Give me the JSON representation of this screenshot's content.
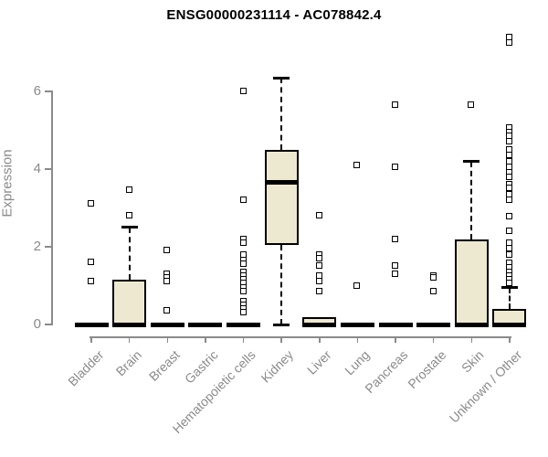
{
  "title": "ENSG00000231114 - AC078842.4",
  "colors": {
    "box_fill": "#ede8d0",
    "box_line": "#000000",
    "axis": "#8a8a8a",
    "title_text": "#000000",
    "background": "#ffffff"
  },
  "chart_data": {
    "type": "boxplot",
    "title": "ENSG00000231114 - AC078842.4",
    "xlabel": "",
    "ylabel": "Expression",
    "ylim": [
      0,
      6.6
    ],
    "yticks": [
      0,
      2,
      4,
      6
    ],
    "grid": false,
    "legend": null,
    "categories": [
      "Bladder",
      "Brain",
      "Breast",
      "Gastric",
      "Hematopoietic cells",
      "Kidney",
      "Liver",
      "Lung",
      "Pancreas",
      "Prostate",
      "Skin",
      "Unknown / Other"
    ],
    "boxes": [
      {
        "category": "Bladder",
        "whisker_low": 0,
        "q1": 0,
        "median": 0,
        "q3": 0,
        "whisker_high": 0,
        "outliers": [
          3.1,
          1.6,
          1.1
        ]
      },
      {
        "category": "Brain",
        "whisker_low": 0,
        "q1": 0,
        "median": 0,
        "q3": 1.15,
        "whisker_high": 2.5,
        "outliers": [
          3.45,
          2.8
        ]
      },
      {
        "category": "Breast",
        "whisker_low": 0,
        "q1": 0,
        "median": 0,
        "q3": 0,
        "whisker_high": 0,
        "outliers": [
          1.9,
          1.3,
          1.2,
          1.1,
          0.35
        ]
      },
      {
        "category": "Gastric",
        "whisker_low": 0,
        "q1": 0,
        "median": 0,
        "q3": 0,
        "whisker_high": 0,
        "outliers": []
      },
      {
        "category": "Hematopoietic cells",
        "whisker_low": 0,
        "q1": 0,
        "median": 0,
        "q3": 0,
        "whisker_high": 0,
        "outliers": [
          6.0,
          3.2,
          2.2,
          2.1,
          1.8,
          1.65,
          1.55,
          1.35,
          1.25,
          1.15,
          1.05,
          0.95,
          0.85,
          0.6,
          0.5,
          0.4,
          0.3
        ]
      },
      {
        "category": "Kidney",
        "whisker_low": 0,
        "q1": 2.05,
        "median": 3.65,
        "q3": 4.5,
        "whisker_high": 6.35,
        "outliers": []
      },
      {
        "category": "Liver",
        "whisker_low": 0,
        "q1": 0,
        "median": 0,
        "q3": 0.2,
        "whisker_high": 0.2,
        "outliers": [
          2.8,
          1.8,
          1.7,
          1.5,
          1.25,
          1.1,
          0.85
        ]
      },
      {
        "category": "Lung",
        "whisker_low": 0,
        "q1": 0,
        "median": 0,
        "q3": 0,
        "whisker_high": 0,
        "outliers": [
          4.1,
          1.0
        ]
      },
      {
        "category": "Pancreas",
        "whisker_low": 0,
        "q1": 0,
        "median": 0,
        "q3": 0,
        "whisker_high": 0,
        "outliers": [
          5.65,
          4.05,
          2.2,
          1.5,
          1.3
        ]
      },
      {
        "category": "Prostate",
        "whisker_low": 0,
        "q1": 0,
        "median": 0,
        "q3": 0,
        "whisker_high": 0,
        "outliers": [
          1.25,
          1.2,
          0.85
        ]
      },
      {
        "category": "Skin",
        "whisker_low": 0,
        "q1": 0,
        "median": 0,
        "q3": 2.2,
        "whisker_high": 4.2,
        "outliers": [
          5.65
        ]
      },
      {
        "category": "Unknown / Other",
        "whisker_low": 0,
        "q1": 0,
        "median": 0,
        "q3": 0.4,
        "whisker_high": 0.95,
        "outliers": [
          7.4,
          7.25,
          5.05,
          4.95,
          4.85,
          4.7,
          4.5,
          4.35,
          4.2,
          4.05,
          3.9,
          3.78,
          3.6,
          3.5,
          3.35,
          3.2,
          2.78,
          2.4,
          2.1,
          1.95,
          1.8,
          1.58,
          1.45,
          1.35,
          1.25,
          1.15,
          1.05
        ]
      }
    ]
  }
}
